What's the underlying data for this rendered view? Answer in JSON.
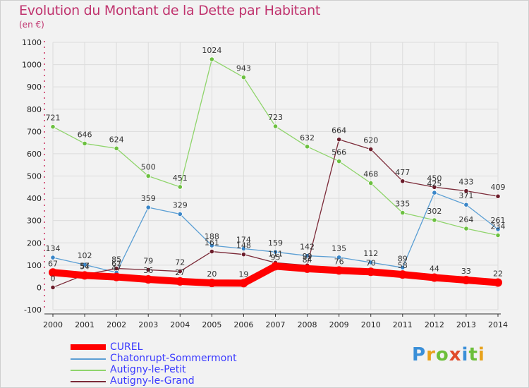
{
  "title": "Evolution du Montant de la Dette par Habitant",
  "unit_label": "(en €)",
  "logo_text": "Proxiti",
  "colors": {
    "title": "#c0336e",
    "grid": "#dcdcdc",
    "axis": "#cc2f5e"
  },
  "chart_data": {
    "type": "line",
    "categories": [
      "2000",
      "2001",
      "2002",
      "2003",
      "2004",
      "2005",
      "2006",
      "2007",
      "2008",
      "2009",
      "2010",
      "2011",
      "2012",
      "2013",
      "2014"
    ],
    "ylim": [
      -100,
      1100
    ],
    "yticks": [
      -100,
      0,
      100,
      200,
      300,
      400,
      500,
      600,
      700,
      800,
      900,
      1000,
      1100
    ],
    "grid": true,
    "legend_position": "bottom-left",
    "series": [
      {
        "name": "Autigny-le-Petit",
        "color": "#8fd46b",
        "point": "#6cc040",
        "values": [
          721,
          646,
          624,
          500,
          451,
          1024,
          943,
          723,
          632,
          566,
          468,
          335,
          302,
          264,
          234
        ]
      },
      {
        "name": "Chatonrupt-Sommermont",
        "color": "#5b9fd4",
        "point": "#3a86c8",
        "values": [
          134,
          102,
          67,
          359,
          329,
          188,
          174,
          159,
          142,
          135,
          112,
          89,
          425,
          371,
          261
        ]
      },
      {
        "name": "Autigny-le-Grand",
        "color": "#7b2a38",
        "point": "#6b1d2b",
        "values": [
          0,
          57,
          85,
          79,
          72,
          161,
          148,
          111,
          99,
          664,
          620,
          477,
          450,
          433,
          409
        ]
      },
      {
        "name": "CUREL",
        "color": "#ff0000",
        "point": "#ff0000",
        "values": [
          67,
          54,
          47,
          36,
          27,
          20,
          19,
          95,
          84,
          76,
          70,
          58,
          44,
          33,
          22
        ]
      }
    ],
    "data_labels": {
      "Autigny-le-Petit": [
        "721",
        "646",
        "624",
        "500",
        "451",
        "1024",
        "943",
        "723",
        "632",
        "566",
        "468",
        "335",
        "302",
        "264",
        "234"
      ],
      "Chatonrupt-Sommermont": [
        "134",
        "102",
        "67",
        "359",
        "329",
        "188",
        "174",
        "159",
        "142",
        "135",
        "112",
        "89",
        "425",
        "371",
        "261"
      ],
      "Autigny-le-Grand": [
        "0",
        "57",
        "85",
        "79",
        "72",
        "161",
        "148",
        "111",
        "99",
        "664",
        "620",
        "477",
        "450",
        "433",
        "409"
      ],
      "CUREL": [
        "67",
        "54",
        "47",
        "36",
        "27",
        "20",
        "19",
        "95",
        "84",
        "76",
        "70",
        "58",
        "44",
        "33",
        "22"
      ]
    }
  },
  "legend": [
    {
      "label": "CUREL",
      "color": "#ff0000",
      "text_color": "#3a3aff"
    },
    {
      "label": "Chatonrupt-Sommermont",
      "color": "#5b9fd4",
      "text_color": "#3a3aff"
    },
    {
      "label": "Autigny-le-Petit",
      "color": "#8fd46b",
      "text_color": "#3a3aff"
    },
    {
      "label": "Autigny-le-Grand",
      "color": "#7b2a38",
      "text_color": "#3a3aff"
    }
  ]
}
